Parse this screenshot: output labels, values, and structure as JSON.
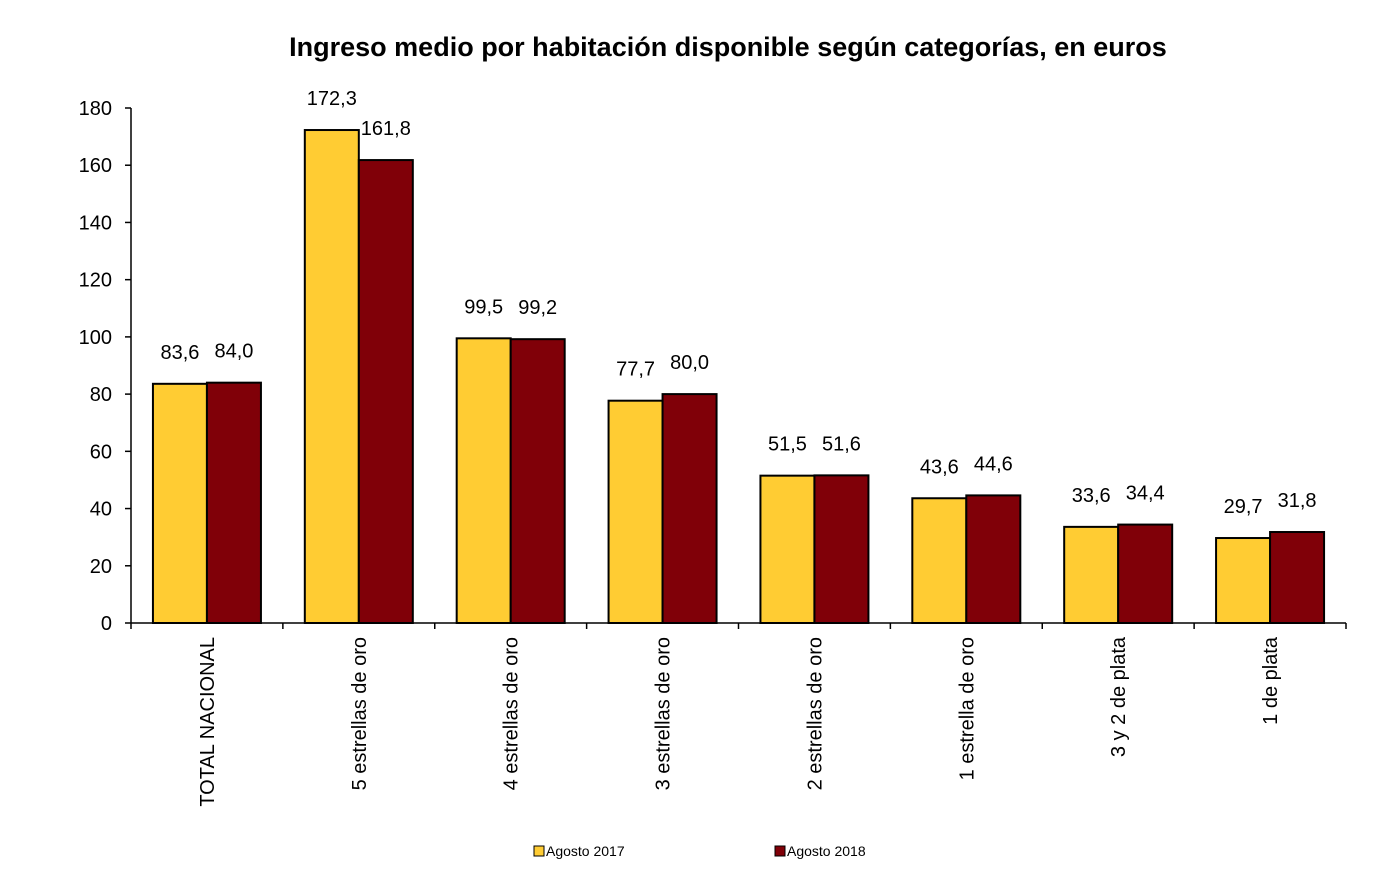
{
  "chart_data": {
    "type": "bar",
    "title": "Ingreso medio por habitación disponible según categorías, en euros",
    "xlabel": "",
    "ylabel": "",
    "ylim": [
      0,
      180
    ],
    "ytick_step": 20,
    "yticks": [
      "0",
      "20",
      "40",
      "60",
      "80",
      "100",
      "120",
      "140",
      "160",
      "180"
    ],
    "grid": false,
    "legend_position": "bottom",
    "categories": [
      "TOTAL NACIONAL",
      "5 estrellas de oro",
      "4 estrellas de oro",
      "3 estrellas de oro",
      "2 estrellas de oro",
      "1 estrella de oro",
      "3 y 2 de plata",
      "1 de plata"
    ],
    "series": [
      {
        "name": "Agosto 2017",
        "color": "#FFCC33",
        "values": [
          83.6,
          172.3,
          99.5,
          77.7,
          51.5,
          43.6,
          33.6,
          29.7
        ],
        "labels": [
          "83,6",
          "172,3",
          "99,5",
          "77,7",
          "51,5",
          "43,6",
          "33,6",
          "29,7"
        ]
      },
      {
        "name": "Agosto 2018",
        "color": "#800008",
        "values": [
          84.0,
          161.8,
          99.2,
          80.0,
          51.6,
          44.6,
          34.4,
          31.8
        ],
        "labels": [
          "84,0",
          "161,8",
          "99,2",
          "80,0",
          "51,6",
          "44,6",
          "34,4",
          "31,8"
        ]
      }
    ]
  }
}
